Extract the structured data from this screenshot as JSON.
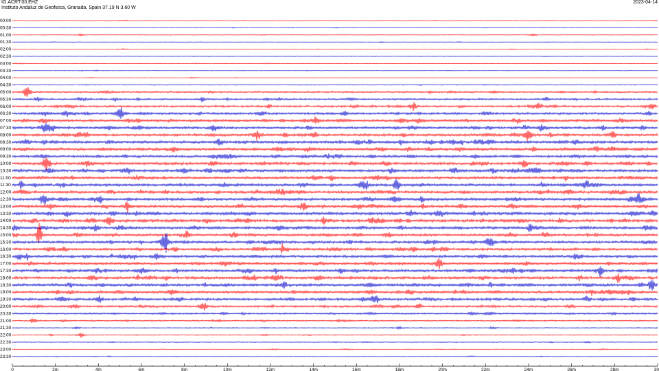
{
  "header": {
    "station": "IG.ACRT.00.EHZ",
    "institution": "Instituto Andaluz de Geofisica, Granada, Spain  37.19 N 3.60 W",
    "date": "2023-04-14"
  },
  "chart_data": {
    "type": "line",
    "title": "IG.ACRT.00.EHZ",
    "xlabel": "",
    "ylabel": "",
    "xlim": [
      0,
      30
    ],
    "x_unit": "m",
    "x_ticks": [
      "0",
      "2m",
      "4m",
      "6m",
      "8m",
      "10m",
      "12m",
      "14m",
      "16m",
      "18m",
      "20m",
      "22m",
      "24m",
      "26m",
      "28m",
      "30"
    ],
    "grid": false,
    "legend": "none",
    "colors": {
      "odd_rows": "#ff0000",
      "even_rows": "#0000cc",
      "text": "#000000",
      "axis": "#000000"
    },
    "rows": [
      {
        "label": "00:00",
        "amplitude": 0.15
      },
      {
        "label": "00:30",
        "amplitude": 0.15
      },
      {
        "label": "01:00",
        "amplitude": 0.18
      },
      {
        "label": "01:30",
        "amplitude": 0.15
      },
      {
        "label": "02:00",
        "amplitude": 0.15
      },
      {
        "label": "02:30",
        "amplitude": 0.15
      },
      {
        "label": "03:00",
        "amplitude": 0.15
      },
      {
        "label": "03:30",
        "amplitude": 0.15
      },
      {
        "label": "04:00",
        "amplitude": 0.15
      },
      {
        "label": "04:30",
        "amplitude": 0.2
      },
      {
        "label": "05:00",
        "amplitude": 0.45
      },
      {
        "label": "05:30",
        "amplitude": 0.5
      },
      {
        "label": "06:00",
        "amplitude": 0.6
      },
      {
        "label": "06:30",
        "amplitude": 0.65
      },
      {
        "label": "07:00",
        "amplitude": 0.7
      },
      {
        "label": "07:30",
        "amplitude": 0.7
      },
      {
        "label": "08:00",
        "amplitude": 0.75
      },
      {
        "label": "08:30",
        "amplitude": 0.75
      },
      {
        "label": "09:00",
        "amplitude": 0.75
      },
      {
        "label": "09:30",
        "amplitude": 0.7
      },
      {
        "label": "10:00",
        "amplitude": 0.75
      },
      {
        "label": "10:30",
        "amplitude": 0.75
      },
      {
        "label": "11:00",
        "amplitude": 0.7
      },
      {
        "label": "11:30",
        "amplitude": 0.75
      },
      {
        "label": "12:00",
        "amplitude": 0.75
      },
      {
        "label": "12:30",
        "amplitude": 0.75
      },
      {
        "label": "13:00",
        "amplitude": 0.75
      },
      {
        "label": "13:30",
        "amplitude": 0.8
      },
      {
        "label": "14:00",
        "amplitude": 0.8
      },
      {
        "label": "14:30",
        "amplitude": 0.75
      },
      {
        "label": "15:00",
        "amplitude": 0.7
      },
      {
        "label": "15:30",
        "amplitude": 0.7
      },
      {
        "label": "16:00",
        "amplitude": 0.7
      },
      {
        "label": "16:30",
        "amplitude": 0.7
      },
      {
        "label": "17:00",
        "amplitude": 0.7
      },
      {
        "label": "17:30",
        "amplitude": 0.75
      },
      {
        "label": "18:00",
        "amplitude": 0.75
      },
      {
        "label": "18:30",
        "amplitude": 0.75
      },
      {
        "label": "19:00",
        "amplitude": 0.7
      },
      {
        "label": "19:30",
        "amplitude": 0.7
      },
      {
        "label": "20:00",
        "amplitude": 0.6
      },
      {
        "label": "20:30",
        "amplitude": 0.45
      },
      {
        "label": "21:00",
        "amplitude": 0.4
      },
      {
        "label": "21:30",
        "amplitude": 0.3
      },
      {
        "label": "22:00",
        "amplitude": 0.25
      },
      {
        "label": "22:30",
        "amplitude": 0.2
      },
      {
        "label": "23:00",
        "amplitude": 0.2
      },
      {
        "label": "23:30",
        "amplitude": 0.2
      }
    ]
  }
}
